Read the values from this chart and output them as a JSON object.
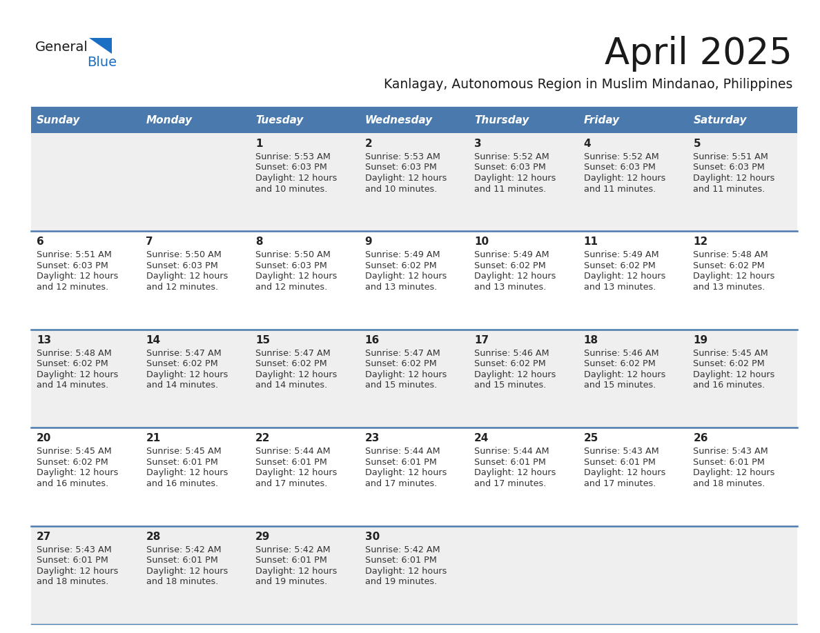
{
  "title": "April 2025",
  "subtitle": "Kanlagay, Autonomous Region in Muslim Mindanao, Philippines",
  "days_of_week": [
    "Sunday",
    "Monday",
    "Tuesday",
    "Wednesday",
    "Thursday",
    "Friday",
    "Saturday"
  ],
  "header_bg_color": "#4a7aad",
  "header_text_color": "#ffffff",
  "row_bg_odd": "#efefef",
  "row_bg_even": "#ffffff",
  "separator_color": "#4a7aad",
  "title_color": "#1a1a1a",
  "subtitle_color": "#1a1a1a",
  "day_number_color": "#222222",
  "day_text_color": "#333333",
  "logo_general_color": "#1a1a1a",
  "logo_blue_color": "#1a6fc4",
  "calendar_data": [
    [
      {
        "day": null,
        "sunrise": null,
        "sunset": null,
        "daylight": null
      },
      {
        "day": null,
        "sunrise": null,
        "sunset": null,
        "daylight": null
      },
      {
        "day": 1,
        "sunrise": "5:53 AM",
        "sunset": "6:03 PM",
        "daylight": "12 hours\nand 10 minutes."
      },
      {
        "day": 2,
        "sunrise": "5:53 AM",
        "sunset": "6:03 PM",
        "daylight": "12 hours\nand 10 minutes."
      },
      {
        "day": 3,
        "sunrise": "5:52 AM",
        "sunset": "6:03 PM",
        "daylight": "12 hours\nand 11 minutes."
      },
      {
        "day": 4,
        "sunrise": "5:52 AM",
        "sunset": "6:03 PM",
        "daylight": "12 hours\nand 11 minutes."
      },
      {
        "day": 5,
        "sunrise": "5:51 AM",
        "sunset": "6:03 PM",
        "daylight": "12 hours\nand 11 minutes."
      }
    ],
    [
      {
        "day": 6,
        "sunrise": "5:51 AM",
        "sunset": "6:03 PM",
        "daylight": "12 hours\nand 12 minutes."
      },
      {
        "day": 7,
        "sunrise": "5:50 AM",
        "sunset": "6:03 PM",
        "daylight": "12 hours\nand 12 minutes."
      },
      {
        "day": 8,
        "sunrise": "5:50 AM",
        "sunset": "6:03 PM",
        "daylight": "12 hours\nand 12 minutes."
      },
      {
        "day": 9,
        "sunrise": "5:49 AM",
        "sunset": "6:02 PM",
        "daylight": "12 hours\nand 13 minutes."
      },
      {
        "day": 10,
        "sunrise": "5:49 AM",
        "sunset": "6:02 PM",
        "daylight": "12 hours\nand 13 minutes."
      },
      {
        "day": 11,
        "sunrise": "5:49 AM",
        "sunset": "6:02 PM",
        "daylight": "12 hours\nand 13 minutes."
      },
      {
        "day": 12,
        "sunrise": "5:48 AM",
        "sunset": "6:02 PM",
        "daylight": "12 hours\nand 13 minutes."
      }
    ],
    [
      {
        "day": 13,
        "sunrise": "5:48 AM",
        "sunset": "6:02 PM",
        "daylight": "12 hours\nand 14 minutes."
      },
      {
        "day": 14,
        "sunrise": "5:47 AM",
        "sunset": "6:02 PM",
        "daylight": "12 hours\nand 14 minutes."
      },
      {
        "day": 15,
        "sunrise": "5:47 AM",
        "sunset": "6:02 PM",
        "daylight": "12 hours\nand 14 minutes."
      },
      {
        "day": 16,
        "sunrise": "5:47 AM",
        "sunset": "6:02 PM",
        "daylight": "12 hours\nand 15 minutes."
      },
      {
        "day": 17,
        "sunrise": "5:46 AM",
        "sunset": "6:02 PM",
        "daylight": "12 hours\nand 15 minutes."
      },
      {
        "day": 18,
        "sunrise": "5:46 AM",
        "sunset": "6:02 PM",
        "daylight": "12 hours\nand 15 minutes."
      },
      {
        "day": 19,
        "sunrise": "5:45 AM",
        "sunset": "6:02 PM",
        "daylight": "12 hours\nand 16 minutes."
      }
    ],
    [
      {
        "day": 20,
        "sunrise": "5:45 AM",
        "sunset": "6:02 PM",
        "daylight": "12 hours\nand 16 minutes."
      },
      {
        "day": 21,
        "sunrise": "5:45 AM",
        "sunset": "6:01 PM",
        "daylight": "12 hours\nand 16 minutes."
      },
      {
        "day": 22,
        "sunrise": "5:44 AM",
        "sunset": "6:01 PM",
        "daylight": "12 hours\nand 17 minutes."
      },
      {
        "day": 23,
        "sunrise": "5:44 AM",
        "sunset": "6:01 PM",
        "daylight": "12 hours\nand 17 minutes."
      },
      {
        "day": 24,
        "sunrise": "5:44 AM",
        "sunset": "6:01 PM",
        "daylight": "12 hours\nand 17 minutes."
      },
      {
        "day": 25,
        "sunrise": "5:43 AM",
        "sunset": "6:01 PM",
        "daylight": "12 hours\nand 17 minutes."
      },
      {
        "day": 26,
        "sunrise": "5:43 AM",
        "sunset": "6:01 PM",
        "daylight": "12 hours\nand 18 minutes."
      }
    ],
    [
      {
        "day": 27,
        "sunrise": "5:43 AM",
        "sunset": "6:01 PM",
        "daylight": "12 hours\nand 18 minutes."
      },
      {
        "day": 28,
        "sunrise": "5:42 AM",
        "sunset": "6:01 PM",
        "daylight": "12 hours\nand 18 minutes."
      },
      {
        "day": 29,
        "sunrise": "5:42 AM",
        "sunset": "6:01 PM",
        "daylight": "12 hours\nand 19 minutes."
      },
      {
        "day": 30,
        "sunrise": "5:42 AM",
        "sunset": "6:01 PM",
        "daylight": "12 hours\nand 19 minutes."
      },
      {
        "day": null,
        "sunrise": null,
        "sunset": null,
        "daylight": null
      },
      {
        "day": null,
        "sunrise": null,
        "sunset": null,
        "daylight": null
      },
      {
        "day": null,
        "sunrise": null,
        "sunset": null,
        "daylight": null
      }
    ]
  ]
}
